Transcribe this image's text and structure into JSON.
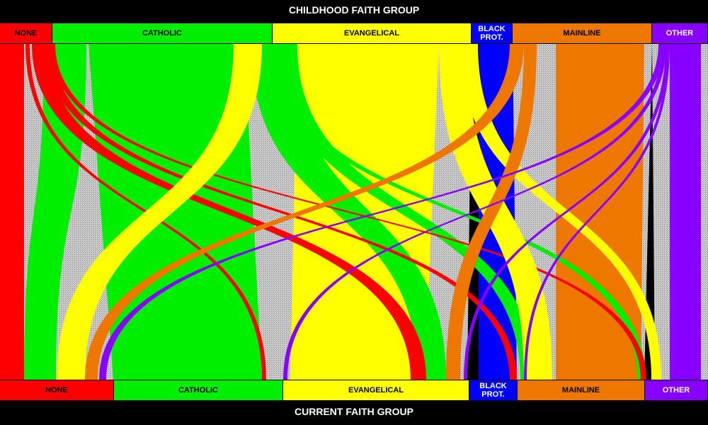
{
  "top_title": "CHILDHOOD FAITH GROUP",
  "bottom_title": "CURRENT FAITH GROUP",
  "colors": {
    "none": "#ff0000",
    "catholic": "#00ee00",
    "evangelical": "#ffff00",
    "black_prot": "#0000ff",
    "mainline": "#ee7700",
    "other": "#8800ff",
    "stay_hatch": "#c0c0c0"
  },
  "childhood_groups": [
    {
      "key": "none",
      "label": "NONE",
      "text_color": "#000000"
    },
    {
      "key": "catholic",
      "label": "CATHOLIC",
      "text_color": "#000000"
    },
    {
      "key": "evangelical",
      "label": "EVANGELICAL",
      "text_color": "#000000"
    },
    {
      "key": "black_prot",
      "label": "BLACK PROT.",
      "text_color": "#ffffff"
    },
    {
      "key": "mainline",
      "label": "MAINLINE",
      "text_color": "#000000"
    },
    {
      "key": "other",
      "label": "OTHER",
      "text_color": "#ffffff"
    }
  ],
  "current_groups": [
    {
      "key": "none",
      "label": "NONE",
      "text_color": "#000000"
    },
    {
      "key": "catholic",
      "label": "CATHOLIC",
      "text_color": "#000000"
    },
    {
      "key": "evangelical",
      "label": "EVANGELICAL",
      "text_color": "#000000"
    },
    {
      "key": "black_prot",
      "label": "BLACK PROT.",
      "text_color": "#ffffff"
    },
    {
      "key": "mainline",
      "label": "MAINLINE",
      "text_color": "#000000"
    },
    {
      "key": "other",
      "label": "OTHER",
      "text_color": "#ffffff"
    }
  ]
}
